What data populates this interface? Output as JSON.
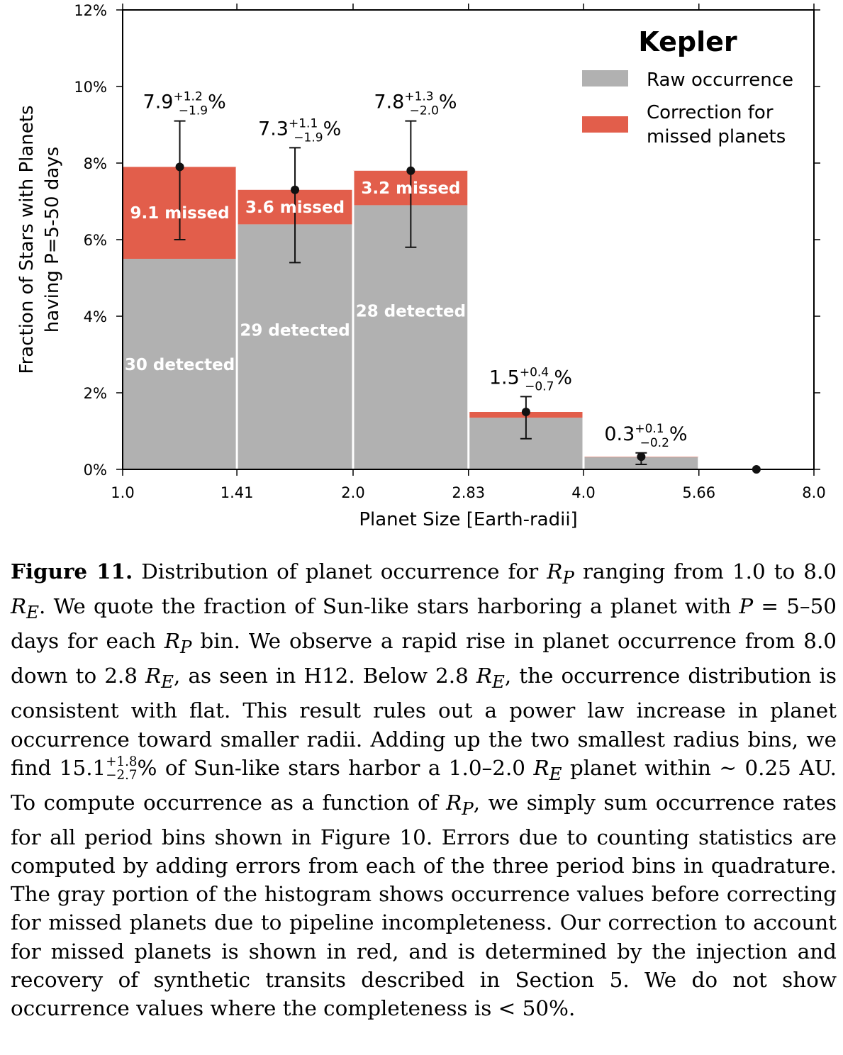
{
  "chart_data": {
    "type": "bar",
    "stacked": true,
    "legend": {
      "title": "Kepler",
      "placement": "top-right",
      "items": [
        {
          "label": "Raw occurrence",
          "color": "#b1b1b1"
        },
        {
          "label_lines": [
            "Correction for",
            "missed planets"
          ],
          "color": "#e25e4b"
        }
      ]
    },
    "xlabel": "Planet Size [Earth-radii]",
    "ylabel_lines": [
      "Fraction of Stars with Planets",
      "having P=5-50 days"
    ],
    "x_scale": "log2",
    "xlim": [
      1.0,
      8.0
    ],
    "ylim": [
      0,
      12
    ],
    "x_ticks": [
      "1.0",
      "1.41",
      "2.0",
      "2.83",
      "4.0",
      "5.66",
      "8.0"
    ],
    "y_ticks": [
      "0%",
      "2%",
      "4%",
      "6%",
      "8%",
      "10%",
      "12%"
    ],
    "bins": [
      {
        "x0": 1.0,
        "x1": 1.41,
        "raw": 5.5,
        "total": 7.9,
        "err_up": 1.2,
        "err_down": 1.9,
        "value_text": "7.9",
        "sup": "+1.2",
        "sub": "−1.9",
        "pct": "%",
        "detected_label": "30 detected",
        "missed_label": "9.1 missed"
      },
      {
        "x0": 1.41,
        "x1": 2.0,
        "raw": 6.4,
        "total": 7.3,
        "err_up": 1.1,
        "err_down": 1.9,
        "value_text": "7.3",
        "sup": "+1.1",
        "sub": "−1.9",
        "pct": "%",
        "detected_label": "29 detected",
        "missed_label": "3.6 missed"
      },
      {
        "x0": 2.0,
        "x1": 2.83,
        "raw": 6.9,
        "total": 7.8,
        "err_up": 1.3,
        "err_down": 2.0,
        "value_text": "7.8",
        "sup": "+1.3",
        "sub": "−2.0",
        "pct": "%",
        "detected_label": "28 detected",
        "missed_label": "3.2 missed"
      },
      {
        "x0": 2.83,
        "x1": 4.0,
        "raw": 1.35,
        "total": 1.5,
        "err_up": 0.4,
        "err_down": 0.7,
        "value_text": "1.5",
        "sup": "+0.4",
        "sub": "−0.7",
        "pct": "%",
        "detected_label": "",
        "missed_label": ""
      },
      {
        "x0": 4.0,
        "x1": 5.66,
        "raw": 0.32,
        "total": 0.33,
        "err_up": 0.1,
        "err_down": 0.2,
        "value_text": "0.3",
        "sup": "+0.1",
        "sub": "−0.2",
        "pct": "%",
        "detected_label": "",
        "missed_label": ""
      },
      {
        "x0": 5.66,
        "x1": 8.0,
        "raw": 0,
        "total": 0,
        "err_up": 0,
        "err_down": 0,
        "value_text": "",
        "sup": "",
        "sub": "",
        "pct": "",
        "detected_label": "",
        "missed_label": ""
      }
    ],
    "colors": {
      "raw": "#b1b1b1",
      "missed": "#e25e4b",
      "error": "#111111"
    }
  },
  "caption": {
    "label": "Figure 11.",
    "p01": " Distribution of planet occurrence for ",
    "v_rp": "R",
    "s_p": "P",
    "p02": " ranging from 1.0 to 8.0 ",
    "v_re": "R",
    "s_e": "E",
    "p03": ". We quote the fraction of Sun-like stars harboring a planet with ",
    "v_p": "P",
    "p04": " = 5–50 days for each ",
    "p05": " bin. We observe a rapid rise in planet occurrence from 8.0 down to 2.8 ",
    "p06": ", as seen in H12. Below 2.8 ",
    "p07": ", the occurrence distribution is consistent with flat. This result rules out a power law increase in planet occurrence to­ward smaller radii. Adding up the two smallest radius bins, we find 15.1",
    "frac_up": "+1.8",
    "frac_dn": "−2.7",
    "p08": "% of Sun-like stars harbor a 1.0–2.0 ",
    "p09": " planet within ∼ 0.25 AU. To compute occurrence as a function of ",
    "p10": ", we simply sum occurrence rates for all period bins shown in Figure 10. Er­rors due to counting statistics are computed by adding errors from each of the three period bins in quadrature. The gray portion of the histogram shows occurrence values before correcting for missed planets due to pipeline incompleteness. Our correction to account for missed planets is shown in red, and is determined by the injec­tion and recovery of synthetic transits described in Section 5. We do not show occurrence values where the completeness is < 50%."
  }
}
